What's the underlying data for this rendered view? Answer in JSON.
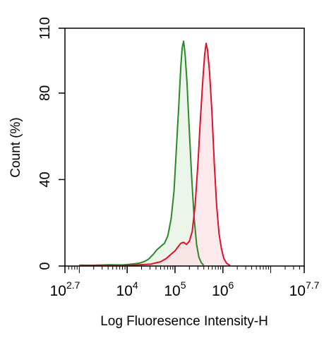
{
  "chart_data": {
    "type": "area",
    "title": "",
    "xlabel": "Log Fluoresence Intensity-H",
    "ylabel": "Count  (%)",
    "x_scale": "log10",
    "xlim": [
      2.7,
      7.7
    ],
    "ylim": [
      0,
      110
    ],
    "grid": false,
    "x_ticks": [
      {
        "base": "10",
        "exp": "2.7",
        "log": 2.7
      },
      {
        "base": "10",
        "exp": "4",
        "log": 4
      },
      {
        "base": "10",
        "exp": "5",
        "log": 5
      },
      {
        "base": "10",
        "exp": "6",
        "log": 6
      },
      {
        "base": "10",
        "exp": "7.7",
        "log": 7.7
      }
    ],
    "y_ticks": [
      0,
      40,
      80,
      110
    ],
    "series": [
      {
        "color": "#2a8a2a",
        "fill": "#e4f1e2",
        "points": [
          [
            3.0,
            0.4
          ],
          [
            3.3,
            0.3
          ],
          [
            3.6,
            0.6
          ],
          [
            3.9,
            0.5
          ],
          [
            4.1,
            0.9
          ],
          [
            4.25,
            1.3
          ],
          [
            4.35,
            2.0
          ],
          [
            4.45,
            3.2
          ],
          [
            4.55,
            5.5
          ],
          [
            4.62,
            7.5
          ],
          [
            4.7,
            9.0
          ],
          [
            4.78,
            10.5
          ],
          [
            4.85,
            14
          ],
          [
            4.92,
            22
          ],
          [
            4.98,
            35
          ],
          [
            5.03,
            55
          ],
          [
            5.08,
            75
          ],
          [
            5.12,
            92
          ],
          [
            5.15,
            101
          ],
          [
            5.18,
            104
          ],
          [
            5.21,
            98
          ],
          [
            5.25,
            85
          ],
          [
            5.3,
            62
          ],
          [
            5.35,
            40
          ],
          [
            5.4,
            22
          ],
          [
            5.45,
            10
          ],
          [
            5.5,
            4
          ],
          [
            5.55,
            1.5
          ],
          [
            5.6,
            0.4
          ]
        ]
      },
      {
        "color": "#e0102a",
        "fill": "#fce0e4",
        "points": [
          [
            3.0,
            0.3
          ],
          [
            3.4,
            0.4
          ],
          [
            3.8,
            0.3
          ],
          [
            4.2,
            0.5
          ],
          [
            4.5,
            0.9
          ],
          [
            4.7,
            2.0
          ],
          [
            4.82,
            3.5
          ],
          [
            4.92,
            5.5
          ],
          [
            5.0,
            7.0
          ],
          [
            5.05,
            8.5
          ],
          [
            5.12,
            10.5
          ],
          [
            5.18,
            11.0
          ],
          [
            5.24,
            10.0
          ],
          [
            5.3,
            11.5
          ],
          [
            5.36,
            16
          ],
          [
            5.42,
            28
          ],
          [
            5.48,
            48
          ],
          [
            5.53,
            68
          ],
          [
            5.58,
            86
          ],
          [
            5.62,
            98
          ],
          [
            5.65,
            103
          ],
          [
            5.68,
            100
          ],
          [
            5.72,
            90
          ],
          [
            5.77,
            72
          ],
          [
            5.82,
            48
          ],
          [
            5.87,
            28
          ],
          [
            5.92,
            15
          ],
          [
            5.97,
            8
          ],
          [
            6.02,
            3.5
          ],
          [
            6.08,
            1.2
          ],
          [
            6.15,
            0.3
          ]
        ]
      }
    ]
  }
}
